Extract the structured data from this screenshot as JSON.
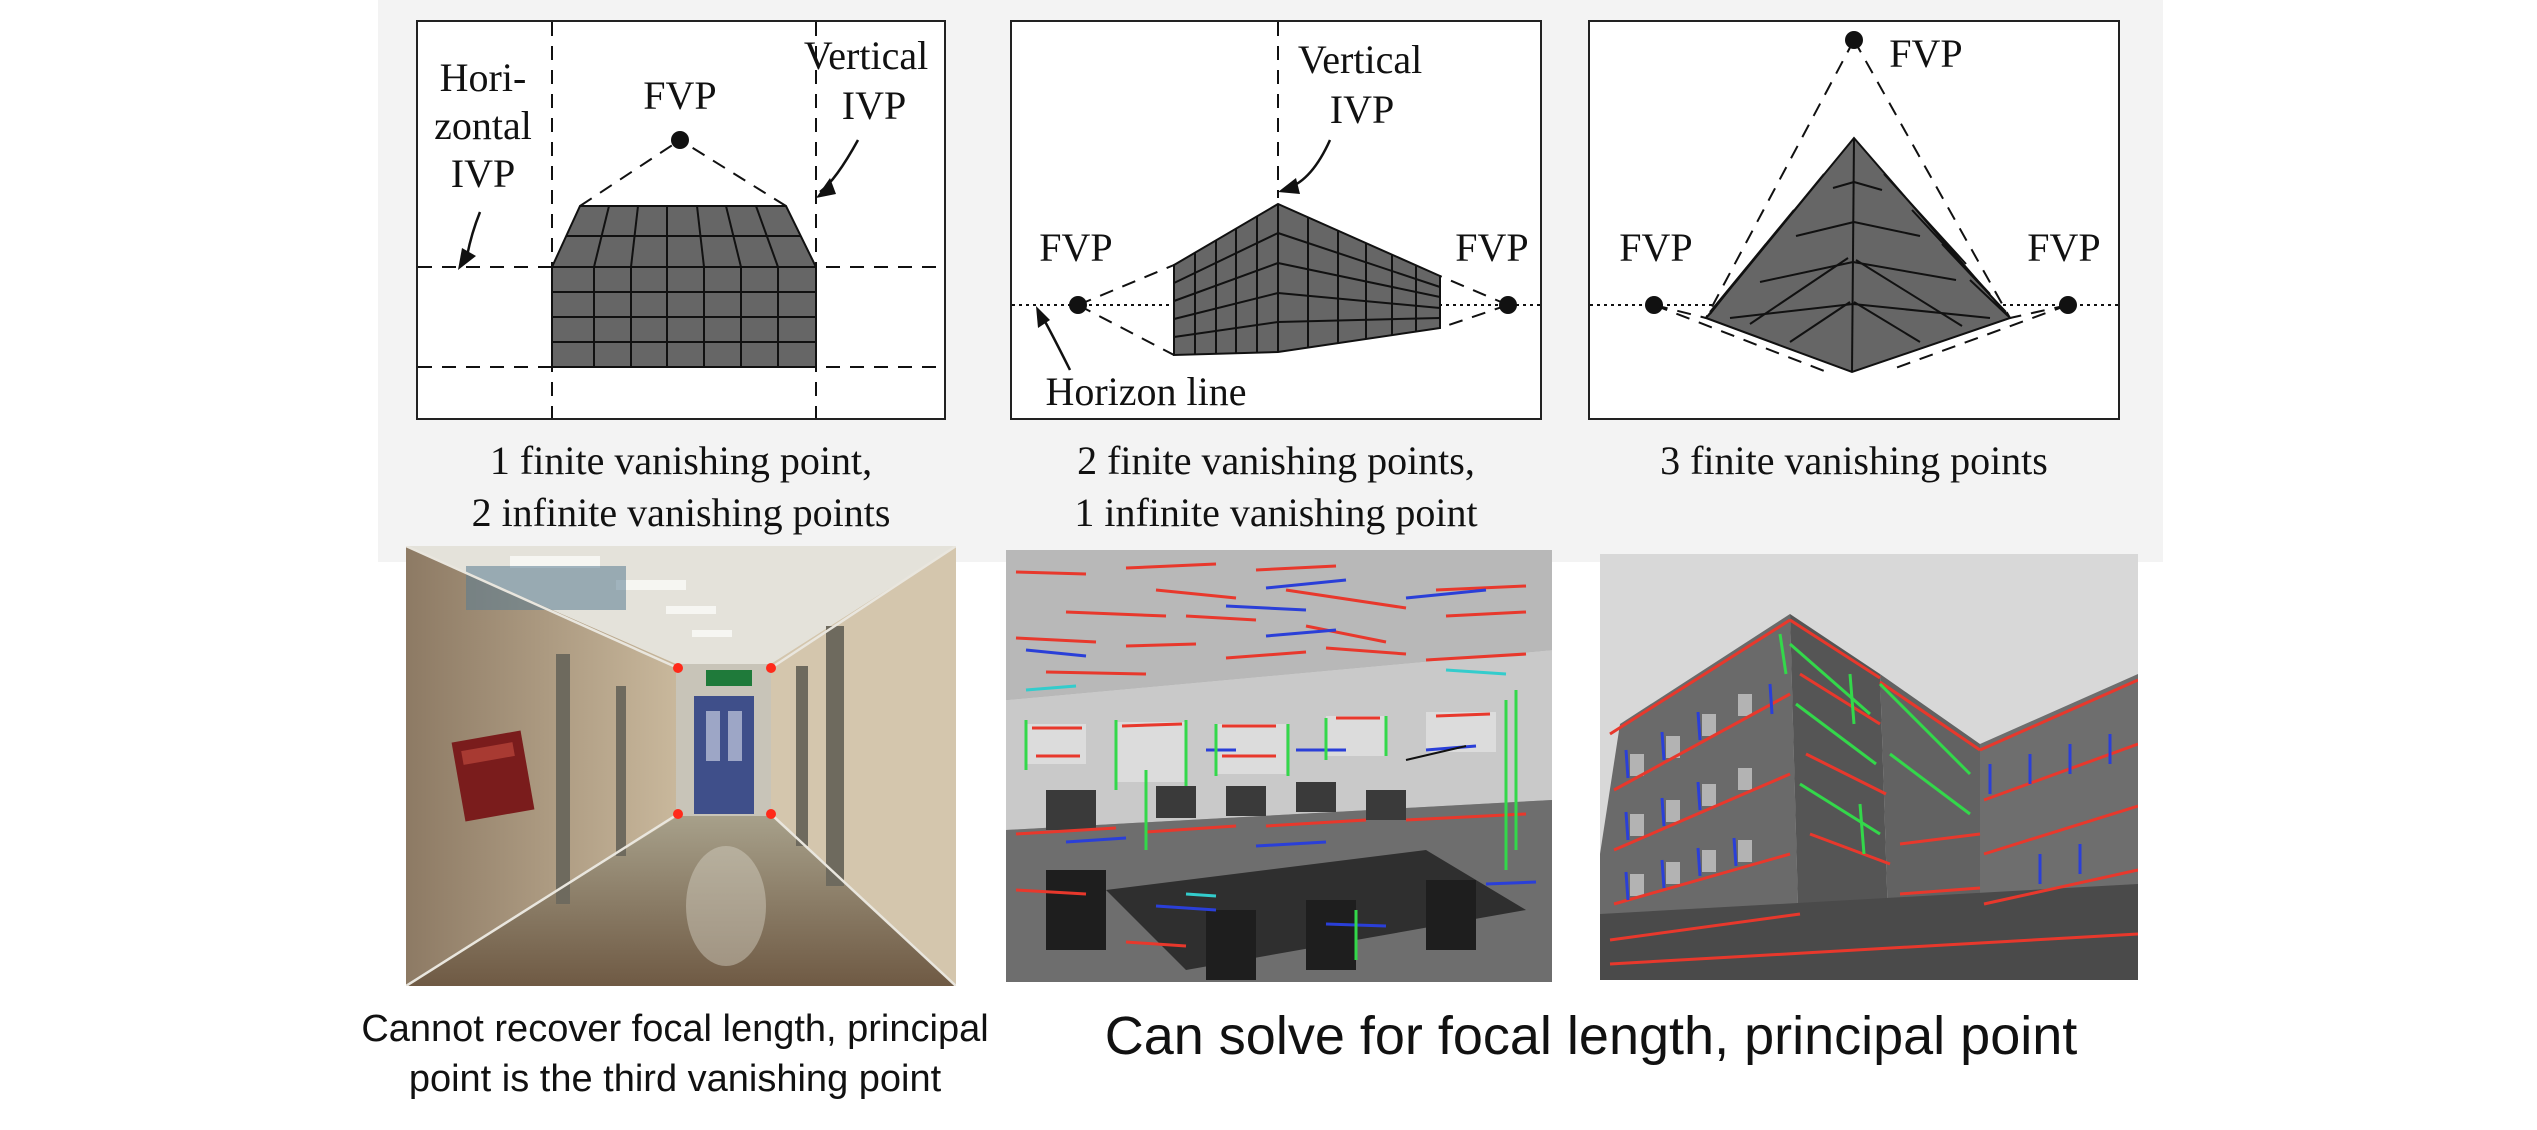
{
  "diagrams": [
    {
      "labels": {
        "horizontal_ivp_1": "Hori-",
        "horizontal_ivp_2": "zontal",
        "horizontal_ivp_3": "IVP",
        "fvp": "FVP",
        "vertical_ivp_1": "Vertical",
        "vertical_ivp_2": "IVP"
      },
      "caption_line1": "1 finite vanishing point,",
      "caption_line2": "2 infinite vanishing points"
    },
    {
      "labels": {
        "vertical_ivp_1": "Vertical",
        "vertical_ivp_2": "IVP",
        "fvp_left": "FVP",
        "fvp_right": "FVP",
        "horizon_line": "Horizon line"
      },
      "caption_line1": "2 finite vanishing points,",
      "caption_line2": "1 infinite vanishing point"
    },
    {
      "labels": {
        "fvp_top": "FVP",
        "fvp_left": "FVP",
        "fvp_right": "FVP"
      },
      "caption_line1": "3 finite vanishing points"
    }
  ],
  "photo_captions": {
    "left_line1": "Cannot recover focal length, principal",
    "left_line2": "point is the third vanishing point",
    "right": "Can solve for focal length, principal point"
  },
  "colors": {
    "box_fill": "#666666",
    "line_red": "#e8382c",
    "line_green": "#33d84a",
    "line_blue": "#2a3fd8",
    "line_cyan": "#33cccc",
    "vp_marker": "#ff2a1a"
  }
}
